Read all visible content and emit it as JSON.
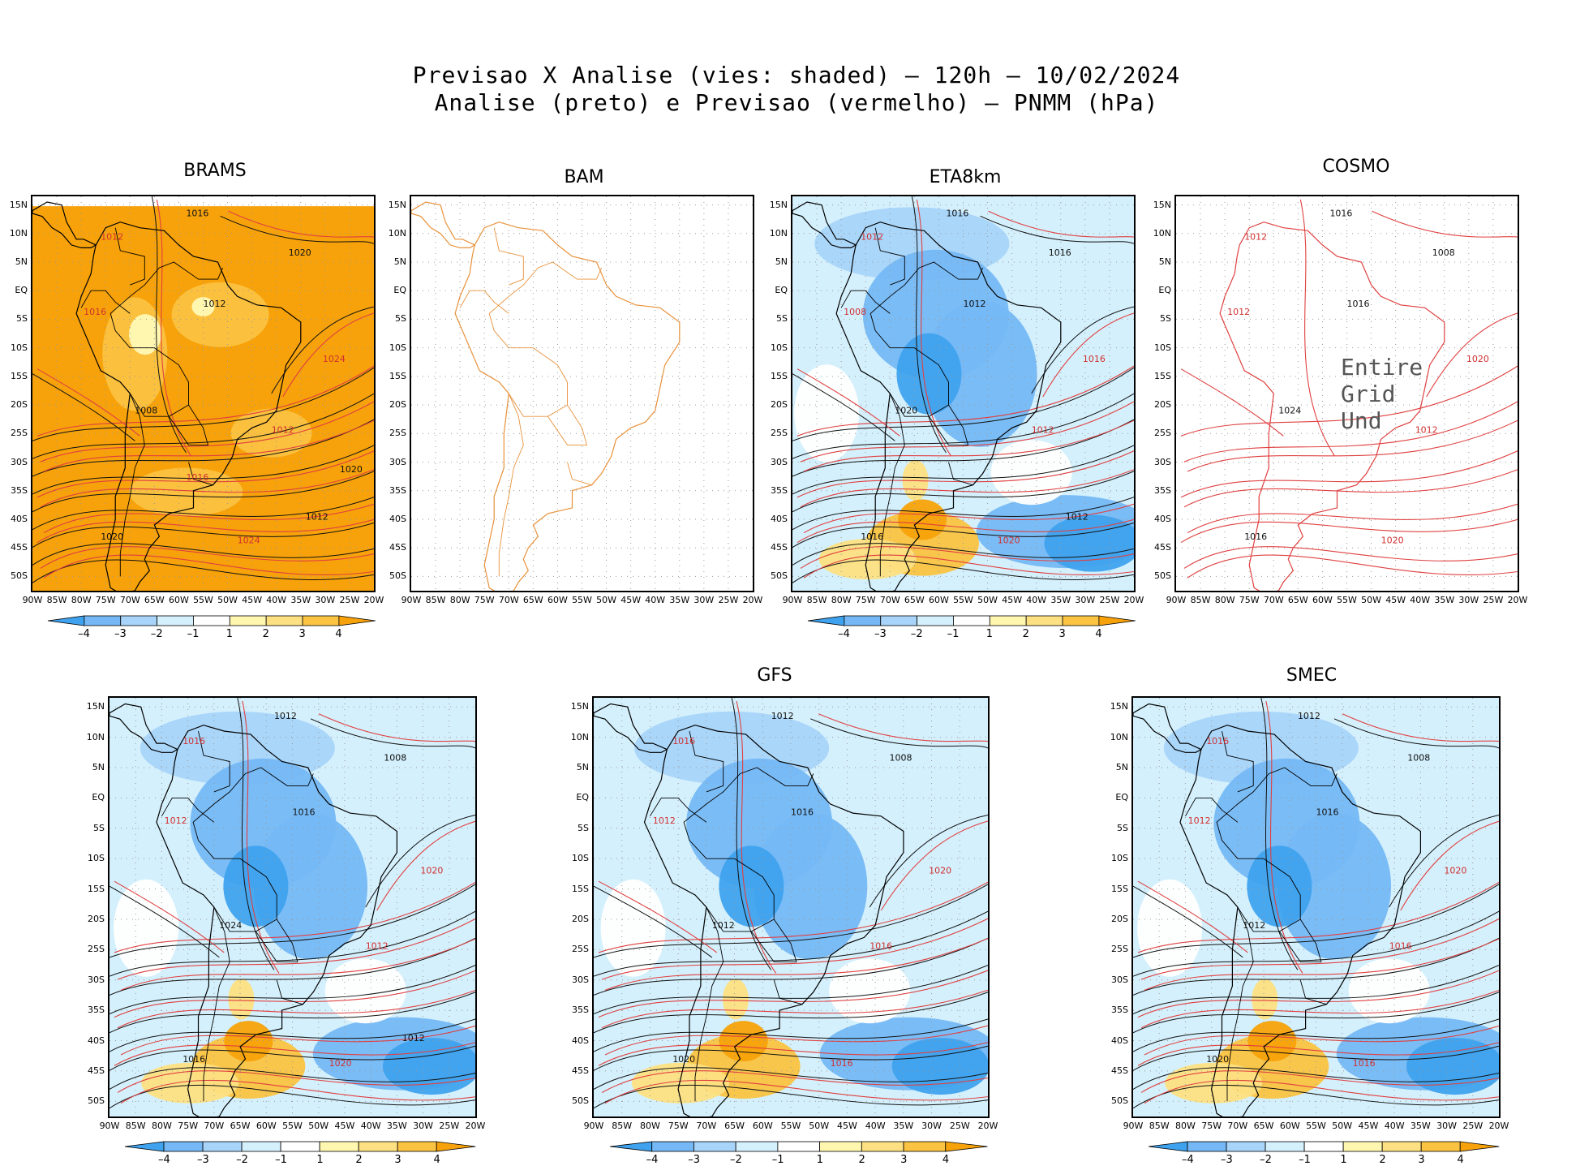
{
  "header": {
    "line1": "Previsao X Analise (vies: shaded) – 120h – 10/02/2024",
    "line2": "Analise (preto) e Previsao (vermelho) – PNMM (hPa)"
  },
  "axes": {
    "lat_labels": [
      "15N",
      "10N",
      "5N",
      "EQ",
      "5S",
      "10S",
      "15S",
      "20S",
      "25S",
      "30S",
      "35S",
      "40S",
      "45S",
      "50S"
    ],
    "lon_labels": [
      "90W",
      "85W",
      "80W",
      "75W",
      "70W",
      "65W",
      "60W",
      "55W",
      "50W",
      "45W",
      "40W",
      "35W",
      "30W",
      "25W",
      "20W"
    ]
  },
  "colorbar": {
    "labels": [
      "–4",
      "–3",
      "–2",
      "–1",
      "1",
      "2",
      "3",
      "4"
    ],
    "colors": [
      "#3fa2ee",
      "#75b8f5",
      "#a8d4fa",
      "#d4f0fc",
      "#ffffff",
      "#fff6b0",
      "#fde082",
      "#fbc342",
      "#f7a20a"
    ]
  },
  "panels": [
    {
      "name": "BRAMS",
      "contours": [
        "1016",
        "1012",
        "1020",
        "1016",
        "1012",
        "1024",
        "1008",
        "1012",
        "1020",
        "1024",
        "1012",
        "1016",
        "1020"
      ],
      "msg": ""
    },
    {
      "name": "BAM",
      "contours": [],
      "msg": ""
    },
    {
      "name": "ETA8km",
      "contours": [
        "1016",
        "1012",
        "1016",
        "1008",
        "1012",
        "1016",
        "1020",
        "1012",
        "1016",
        "1020",
        "1012"
      ],
      "msg": ""
    },
    {
      "name": "COSMO",
      "contours": [
        "1016",
        "1012",
        "1008",
        "1012",
        "1016",
        "1020",
        "1024",
        "1012",
        "1016",
        "1020"
      ],
      "msg": "Entire Grid Und"
    },
    {
      "name": "",
      "contours": [
        "1012",
        "1016",
        "1008",
        "1012",
        "1016",
        "1020",
        "1024",
        "1012",
        "1016",
        "1020",
        "1012"
      ],
      "msg": ""
    },
    {
      "name": "GFS",
      "contours": [
        "1012",
        "1016",
        "1008",
        "1012",
        "1016",
        "1020",
        "1012",
        "1016",
        "1020",
        "1016"
      ],
      "msg": ""
    },
    {
      "name": "SMEC",
      "contours": [
        "1012",
        "1016",
        "1008",
        "1012",
        "1016",
        "1020",
        "1012",
        "1016",
        "1020",
        "1016"
      ],
      "msg": ""
    }
  ]
}
